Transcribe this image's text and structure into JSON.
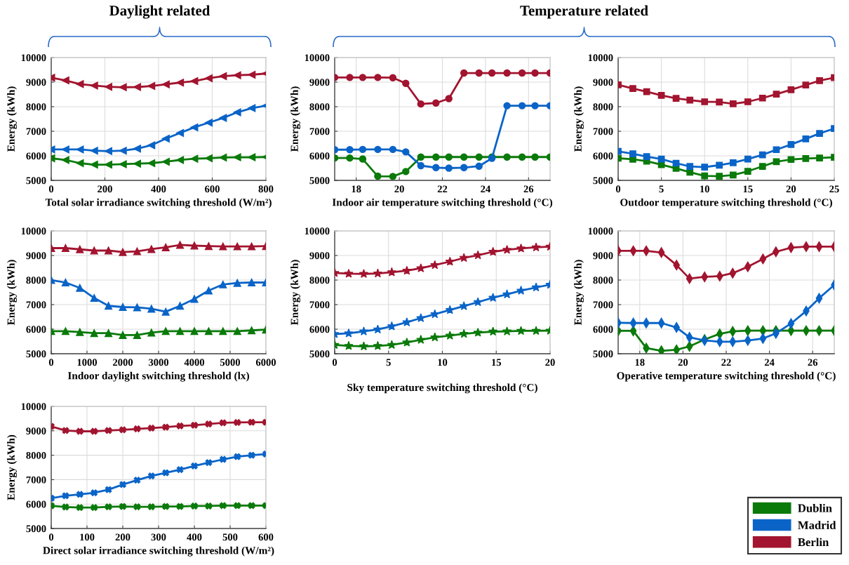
{
  "chart_data": [
    {
      "type": "line",
      "title": "Daylight related",
      "xlabel": "Total solar irradiance switching threshold (W/m²)",
      "ylabel": "Energy (kWh)",
      "x": [
        0,
        53,
        107,
        160,
        213,
        267,
        320,
        373,
        427,
        480,
        533,
        587,
        640,
        693,
        747,
        800
      ],
      "series": [
        {
          "color": "#0a7a0a",
          "values": [
            5900,
            5830,
            5700,
            5640,
            5640,
            5660,
            5680,
            5700,
            5760,
            5830,
            5880,
            5900,
            5930,
            5940,
            5940,
            5950
          ]
        },
        {
          "color": "#0a64c8",
          "values": [
            6260,
            6260,
            6260,
            6210,
            6190,
            6210,
            6290,
            6430,
            6700,
            6930,
            7160,
            7350,
            7540,
            7770,
            7940,
            8040
          ]
        },
        {
          "color": "#a2142f",
          "values": [
            9180,
            9070,
            8920,
            8860,
            8810,
            8790,
            8800,
            8840,
            8910,
            8980,
            9040,
            9160,
            9240,
            9280,
            9300,
            9350
          ]
        }
      ],
      "xlim": [
        0,
        800
      ],
      "xticks": [
        0,
        200,
        400,
        600,
        800
      ],
      "ylim": [
        5000,
        10000
      ],
      "yticks": [
        5000,
        6000,
        7000,
        8000,
        9000,
        10000
      ],
      "grid": true,
      "marker": "triangle-left",
      "line_style": "solid"
    },
    {
      "type": "line",
      "title": "Temperature related",
      "xlabel": "Indoor air temperature switching threshold (°C)",
      "ylabel": "Energy (kWh)",
      "x": [
        17,
        17.7,
        18.3,
        19,
        19.7,
        20.3,
        21,
        21.7,
        22.3,
        23,
        23.7,
        24.3,
        25,
        25.7,
        26.3,
        27
      ],
      "series": [
        {
          "color": "#0a7a0a",
          "values": [
            5910,
            5910,
            5870,
            5170,
            5160,
            5360,
            5950,
            5950,
            5950,
            5950,
            5950,
            5950,
            5950,
            5950,
            5950,
            5950
          ]
        },
        {
          "color": "#0a64c8",
          "values": [
            6250,
            6250,
            6260,
            6260,
            6260,
            6160,
            5600,
            5520,
            5500,
            5520,
            5580,
            5900,
            8040,
            8040,
            8040,
            8040
          ]
        },
        {
          "color": "#a2142f",
          "values": [
            9190,
            9190,
            9190,
            9190,
            9180,
            8950,
            8110,
            8150,
            8330,
            9370,
            9370,
            9370,
            9370,
            9370,
            9370,
            9370
          ]
        }
      ],
      "xlim": [
        17,
        27
      ],
      "xticks": [
        18,
        20,
        22,
        24,
        26
      ],
      "ylim": [
        5000,
        10000
      ],
      "yticks": [
        5000,
        6000,
        7000,
        8000,
        9000,
        10000
      ],
      "grid": true,
      "marker": "circle",
      "line_style": "solid"
    },
    {
      "type": "line",
      "xlabel": "Outdoor temperature switching threshold (°C)",
      "ylabel": "Energy (kWh)",
      "x": [
        0,
        1.7,
        3.3,
        5,
        6.7,
        8.3,
        10,
        11.7,
        13.3,
        15,
        16.7,
        18.3,
        20,
        21.7,
        23.3,
        25
      ],
      "series": [
        {
          "color": "#0a7a0a",
          "values": [
            5900,
            5860,
            5780,
            5640,
            5490,
            5330,
            5180,
            5170,
            5220,
            5370,
            5570,
            5760,
            5850,
            5890,
            5910,
            5940
          ]
        },
        {
          "color": "#0a64c8",
          "values": [
            6180,
            6080,
            5970,
            5870,
            5700,
            5570,
            5540,
            5620,
            5720,
            5870,
            6040,
            6250,
            6460,
            6690,
            6910,
            7110
          ]
        },
        {
          "color": "#a2142f",
          "values": [
            8890,
            8740,
            8610,
            8460,
            8340,
            8270,
            8200,
            8190,
            8120,
            8200,
            8350,
            8510,
            8690,
            8880,
            9060,
            9180
          ]
        }
      ],
      "xlim": [
        0,
        25
      ],
      "xticks": [
        0,
        5,
        10,
        15,
        20,
        25
      ],
      "ylim": [
        5000,
        10000
      ],
      "yticks": [
        5000,
        6000,
        7000,
        8000,
        9000,
        10000
      ],
      "grid": true,
      "marker": "square",
      "line_style": "solid"
    },
    {
      "type": "line",
      "xlabel": "Indoor daylight switching threshold (lx)",
      "ylabel": "Energy (kWh)",
      "x": [
        0,
        400,
        800,
        1200,
        1600,
        2000,
        2400,
        2800,
        3200,
        3600,
        4000,
        4400,
        4800,
        5200,
        5600,
        6000
      ],
      "series": [
        {
          "color": "#0a7a0a",
          "values": [
            5920,
            5920,
            5880,
            5840,
            5840,
            5760,
            5760,
            5860,
            5920,
            5920,
            5920,
            5920,
            5920,
            5920,
            5950,
            5980
          ]
        },
        {
          "color": "#0a64c8",
          "values": [
            8000,
            7900,
            7680,
            7270,
            6950,
            6900,
            6890,
            6830,
            6710,
            6950,
            7230,
            7570,
            7820,
            7880,
            7900,
            7900
          ]
        },
        {
          "color": "#a2142f",
          "values": [
            9300,
            9300,
            9250,
            9200,
            9200,
            9140,
            9170,
            9260,
            9330,
            9430,
            9400,
            9380,
            9370,
            9370,
            9370,
            9380
          ]
        }
      ],
      "xlim": [
        0,
        6000
      ],
      "xticks": [
        0,
        1000,
        2000,
        3000,
        4000,
        5000,
        6000
      ],
      "ylim": [
        5000,
        10000
      ],
      "yticks": [
        5000,
        6000,
        7000,
        8000,
        9000,
        10000
      ],
      "grid": true,
      "marker": "triangle",
      "line_style": "solid"
    },
    {
      "type": "line",
      "xlabel": "Sky temperature switching threshold (°C)",
      "ylabel": "Energy (kWh)",
      "x": [
        0,
        1.3,
        2.7,
        4,
        5.3,
        6.7,
        8,
        9.3,
        10.7,
        12,
        13.3,
        14.7,
        16,
        17.3,
        18.7,
        20
      ],
      "series": [
        {
          "color": "#0a7a0a",
          "values": [
            5360,
            5320,
            5300,
            5320,
            5360,
            5460,
            5570,
            5670,
            5740,
            5810,
            5860,
            5900,
            5910,
            5930,
            5930,
            5940
          ]
        },
        {
          "color": "#0a64c8",
          "values": [
            5800,
            5830,
            5910,
            5990,
            6120,
            6280,
            6450,
            6610,
            6780,
            6940,
            7100,
            7280,
            7420,
            7570,
            7700,
            7810
          ]
        },
        {
          "color": "#a2142f",
          "values": [
            8290,
            8260,
            8250,
            8270,
            8320,
            8380,
            8480,
            8610,
            8750,
            8900,
            9010,
            9150,
            9230,
            9290,
            9330,
            9360
          ]
        }
      ],
      "xlim": [
        0,
        20
      ],
      "xticks": [
        0,
        5,
        10,
        15,
        20
      ],
      "ylim": [
        5000,
        10000
      ],
      "yticks": [
        5000,
        6000,
        7000,
        8000,
        9000,
        10000
      ],
      "grid": true,
      "marker": "star",
      "line_style": "solid"
    },
    {
      "type": "line",
      "xlabel": "Operative temperature switching threshold (°C)",
      "ylabel": "Energy (kWh)",
      "x": [
        17,
        17.7,
        18.3,
        19,
        19.7,
        20.3,
        21,
        21.7,
        22.3,
        23,
        23.7,
        24.3,
        25,
        25.7,
        26.3,
        27
      ],
      "series": [
        {
          "color": "#0a7a0a",
          "values": [
            5930,
            5930,
            5230,
            5120,
            5160,
            5300,
            5580,
            5810,
            5910,
            5940,
            5940,
            5940,
            5940,
            5940,
            5940,
            5940
          ]
        },
        {
          "color": "#0a64c8",
          "values": [
            6260,
            6250,
            6250,
            6250,
            6070,
            5670,
            5540,
            5490,
            5490,
            5540,
            5620,
            5830,
            6230,
            6740,
            7260,
            7800
          ]
        },
        {
          "color": "#a2142f",
          "values": [
            9190,
            9190,
            9190,
            9120,
            8610,
            8060,
            8130,
            8160,
            8280,
            8540,
            8860,
            9150,
            9320,
            9360,
            9360,
            9360
          ]
        }
      ],
      "xlim": [
        17,
        27
      ],
      "xticks": [
        18,
        20,
        22,
        24,
        26
      ],
      "ylim": [
        5000,
        10000
      ],
      "yticks": [
        5000,
        6000,
        7000,
        8000,
        9000,
        10000
      ],
      "grid": true,
      "marker": "diamond",
      "line_style": "solid"
    },
    {
      "type": "line",
      "xlabel": "Direct solar irradiance switching threshold (W/m²)",
      "ylabel": "Energy (kWh)",
      "x": [
        0,
        40,
        80,
        120,
        160,
        200,
        240,
        280,
        320,
        360,
        400,
        440,
        480,
        520,
        560,
        600
      ],
      "series": [
        {
          "name": "Dublin",
          "color": "#0a7a0a",
          "values": [
            5930,
            5880,
            5860,
            5860,
            5890,
            5900,
            5890,
            5890,
            5900,
            5900,
            5920,
            5920,
            5940,
            5940,
            5940,
            5940
          ]
        },
        {
          "name": "Madrid",
          "color": "#0a64c8",
          "values": [
            6240,
            6340,
            6400,
            6460,
            6590,
            6800,
            6980,
            7150,
            7280,
            7410,
            7560,
            7700,
            7830,
            7940,
            8000,
            8050
          ]
        },
        {
          "name": "Berlin",
          "color": "#a2142f",
          "values": [
            9180,
            9010,
            8980,
            8980,
            9010,
            9040,
            9080,
            9110,
            9150,
            9200,
            9230,
            9280,
            9330,
            9340,
            9350,
            9350
          ]
        }
      ],
      "xlim": [
        0,
        600
      ],
      "xticks": [
        0,
        100,
        200,
        300,
        400,
        500,
        600
      ],
      "ylim": [
        5000,
        10000
      ],
      "yticks": [
        5000,
        6000,
        7000,
        8000,
        9000,
        10000
      ],
      "grid": true,
      "marker": "cross",
      "line_style": "solid",
      "legend": "bottom right"
    }
  ]
}
